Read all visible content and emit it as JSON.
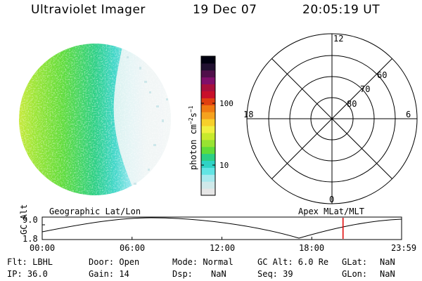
{
  "header": {
    "instrument": "Ultraviolet Imager",
    "date": "19 Dec 07",
    "time": "20:05:19 UT"
  },
  "colorbar": {
    "unit_label": "photon cm",
    "unit_exp1": "−2",
    "unit_s": "s",
    "unit_exp2": "−1",
    "tick_100": "100",
    "tick_10": "10",
    "colors": [
      "#e6e6e6",
      "#cfe9ea",
      "#a8e9ee",
      "#61e4e4",
      "#2fd3c5",
      "#2ccf84",
      "#5fdc3a",
      "#98e332",
      "#c8ea2c",
      "#f0f040",
      "#f7d02a",
      "#f6a21e",
      "#f07a12",
      "#e04010",
      "#c8102a",
      "#a8103c",
      "#80106a",
      "#50104a",
      "#201030",
      "#000010"
    ]
  },
  "polar": {
    "label_top": "12",
    "label_bottom": "0",
    "label_left": "18",
    "label_right": "6",
    "ring_60": "60",
    "ring_70": "70",
    "ring_80": "80"
  },
  "timeline": {
    "left_title": "Geographic Lat/Lon",
    "right_title": "Apex MLat/MLT",
    "axis_label": "GC Alt",
    "y_top": "9.0",
    "y_bottom": "1.8",
    "x_ticks": [
      "00:00",
      "06:00",
      "12:00",
      "18:00",
      "23:59"
    ],
    "current_time_fraction": 0.8369,
    "marker_color": "#e00000"
  },
  "footer": {
    "flt": "Flt: LBHL",
    "ip": "IP: 36.0",
    "door": "Door: Open",
    "gain": "Gain: 14",
    "mode": "Mode: Normal",
    "dsp_label": "Dsp:",
    "dsp_value": "NaN",
    "gcalt": "GC Alt: 6.0 Re",
    "seq": "Seq: 39",
    "glat_label": "GLat:",
    "glat_value": "NaN",
    "glon_label": "GLon:",
    "glon_value": "NaN"
  }
}
